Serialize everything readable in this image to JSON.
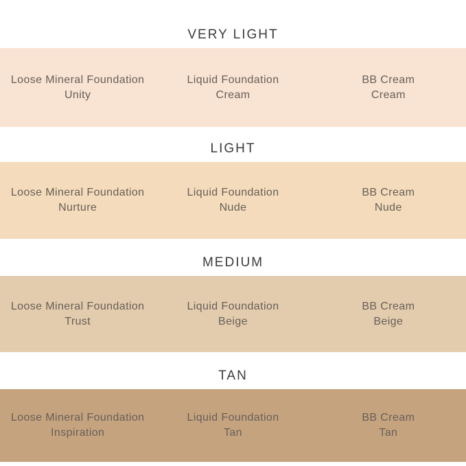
{
  "colors": {
    "background": "#ffffff",
    "heading_text": "#3b3b3b",
    "label_text": "#665f58",
    "band_very_light": "#f9e3d3",
    "band_light": "#f4dbbb",
    "band_medium": "#e3cbad",
    "band_tan": "#c6a37f"
  },
  "sections": [
    {
      "heading": "VERY LIGHT",
      "band_color": "#f9e3d3",
      "products": [
        {
          "line1": "Loose Mineral Foundation",
          "line2": "Unity"
        },
        {
          "line1": "Liquid Foundation",
          "line2": "Cream"
        },
        {
          "line1": "BB Cream",
          "line2": "Cream"
        }
      ]
    },
    {
      "heading": "LIGHT",
      "band_color": "#f4dbbb",
      "products": [
        {
          "line1": "Loose Mineral Foundation",
          "line2": "Nurture"
        },
        {
          "line1": "Liquid Foundation",
          "line2": "Nude"
        },
        {
          "line1": "BB Cream",
          "line2": "Nude"
        }
      ]
    },
    {
      "heading": "MEDIUM",
      "band_color": "#e3cbad",
      "products": [
        {
          "line1": "Loose Mineral Foundation",
          "line2": "Trust"
        },
        {
          "line1": "Liquid Foundation",
          "line2": "Beige"
        },
        {
          "line1": "BB Cream",
          "line2": "Beige"
        }
      ]
    },
    {
      "heading": "TAN",
      "band_color": "#c6a37f",
      "products": [
        {
          "line1": "Loose Mineral Foundation",
          "line2": "Inspiration"
        },
        {
          "line1": "Liquid Foundation",
          "line2": "Tan"
        },
        {
          "line1": "BB Cream",
          "line2": "Tan"
        }
      ]
    }
  ],
  "chart_data": {
    "type": "table",
    "title": "Foundation shade matching chart",
    "row_headers": [
      "VERY LIGHT",
      "LIGHT",
      "MEDIUM",
      "TAN"
    ],
    "columns": [
      "Loose Mineral Foundation",
      "Liquid Foundation",
      "BB Cream"
    ],
    "rows": [
      {
        "shade_level": "VERY LIGHT",
        "swatch_color": "#f9e3d3",
        "cells": [
          "Unity",
          "Cream",
          "Cream"
        ]
      },
      {
        "shade_level": "LIGHT",
        "swatch_color": "#f4dbbb",
        "cells": [
          "Nurture",
          "Nude",
          "Nude"
        ]
      },
      {
        "shade_level": "MEDIUM",
        "swatch_color": "#e3cbad",
        "cells": [
          "Trust",
          "Beige",
          "Beige"
        ]
      },
      {
        "shade_level": "TAN",
        "swatch_color": "#c6a37f",
        "cells": [
          "Inspiration",
          "Tan",
          "Tan"
        ]
      }
    ],
    "legend_position": "none",
    "grid": false
  }
}
